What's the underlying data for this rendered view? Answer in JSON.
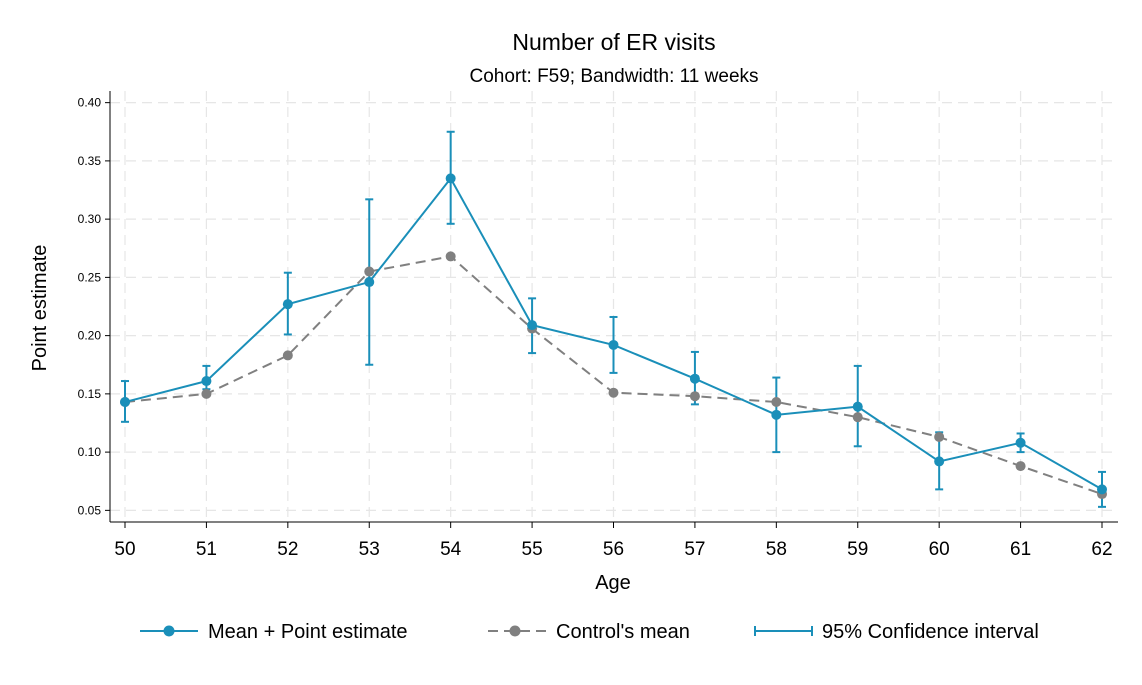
{
  "chart_data": {
    "type": "line",
    "title": "Number of ER visits",
    "subtitle": "Cohort: F59; Bandwidth: 11 weeks",
    "xlabel": "Age",
    "ylabel": "Point estimate",
    "x": [
      50,
      51,
      52,
      53,
      54,
      55,
      56,
      57,
      58,
      59,
      60,
      61,
      62
    ],
    "xlim": [
      50,
      62
    ],
    "ylim": [
      0.04,
      0.41
    ],
    "yticks": [
      "0.05",
      "0.10",
      "0.15",
      "0.20",
      "0.25",
      "0.30",
      "0.35",
      "0.40"
    ],
    "ytick_values": [
      0.05,
      0.1,
      0.15,
      0.2,
      0.25,
      0.3,
      0.35,
      0.4
    ],
    "xticks": [
      "50",
      "51",
      "52",
      "53",
      "54",
      "55",
      "56",
      "57",
      "58",
      "59",
      "60",
      "61",
      "62"
    ],
    "grid": true,
    "legend_position": "bottom",
    "series": [
      {
        "name": "Mean + Point estimate",
        "style": "solid",
        "color": "#1a8fb9",
        "values": [
          0.143,
          0.161,
          0.227,
          0.246,
          0.335,
          0.209,
          0.192,
          0.163,
          0.132,
          0.139,
          0.092,
          0.108,
          0.068
        ]
      },
      {
        "name": "Control's mean",
        "style": "dashed",
        "color": "#808080",
        "values": [
          0.143,
          0.15,
          0.183,
          0.255,
          0.268,
          0.206,
          0.151,
          0.148,
          0.143,
          0.13,
          0.113,
          0.088,
          0.064
        ]
      }
    ],
    "confidence_interval": {
      "name": "95% Confidence interval",
      "color": "#1a8fb9",
      "lower": [
        0.126,
        0.154,
        0.201,
        0.175,
        0.296,
        0.185,
        0.168,
        0.141,
        0.1,
        0.105,
        0.068,
        0.1,
        0.053
      ],
      "upper": [
        0.161,
        0.174,
        0.254,
        0.317,
        0.375,
        0.232,
        0.216,
        0.186,
        0.164,
        0.174,
        0.117,
        0.116,
        0.083
      ]
    }
  }
}
